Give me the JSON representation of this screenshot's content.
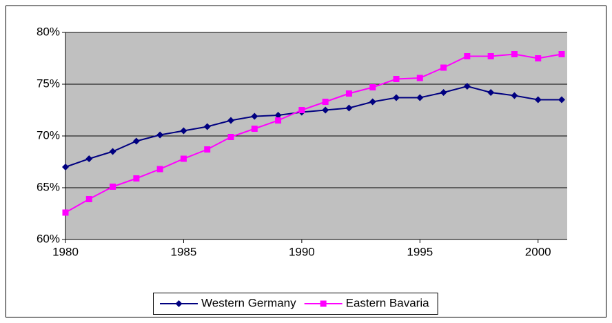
{
  "chart_data": {
    "type": "line",
    "x": [
      1980,
      1981,
      1982,
      1983,
      1984,
      1985,
      1986,
      1987,
      1988,
      1989,
      1990,
      1991,
      1992,
      1993,
      1994,
      1995,
      1996,
      1997,
      1998,
      1999,
      2000,
      2001
    ],
    "series": [
      {
        "name": "Western Germany",
        "color": "#000080",
        "marker": "diamond",
        "values": [
          67.0,
          67.8,
          68.5,
          69.5,
          70.1,
          70.5,
          70.9,
          71.5,
          71.9,
          72.0,
          72.3,
          72.5,
          72.7,
          73.3,
          73.7,
          73.7,
          74.2,
          74.8,
          74.2,
          73.9,
          73.5,
          73.5
        ]
      },
      {
        "name": "Eastern Bavaria",
        "color": "#FF00FF",
        "marker": "square",
        "values": [
          62.6,
          63.9,
          65.1,
          65.9,
          66.8,
          67.8,
          68.7,
          69.9,
          70.7,
          71.5,
          72.5,
          73.3,
          74.1,
          74.7,
          75.5,
          75.6,
          76.6,
          77.7,
          77.7,
          77.9,
          77.5,
          77.9
        ]
      }
    ],
    "xlim": [
      1980,
      2001
    ],
    "xticks": [
      1980,
      1985,
      1990,
      1995,
      2000
    ],
    "ylim": [
      60,
      80
    ],
    "yticks": [
      {
        "value": 60,
        "label": "60%"
      },
      {
        "value": 65,
        "label": "65%"
      },
      {
        "value": 70,
        "label": "70%"
      },
      {
        "value": 75,
        "label": "75%"
      },
      {
        "value": 80,
        "label": "80%"
      }
    ],
    "grid": true,
    "plot_background": "#C0C0C0",
    "legend": "bottom"
  }
}
